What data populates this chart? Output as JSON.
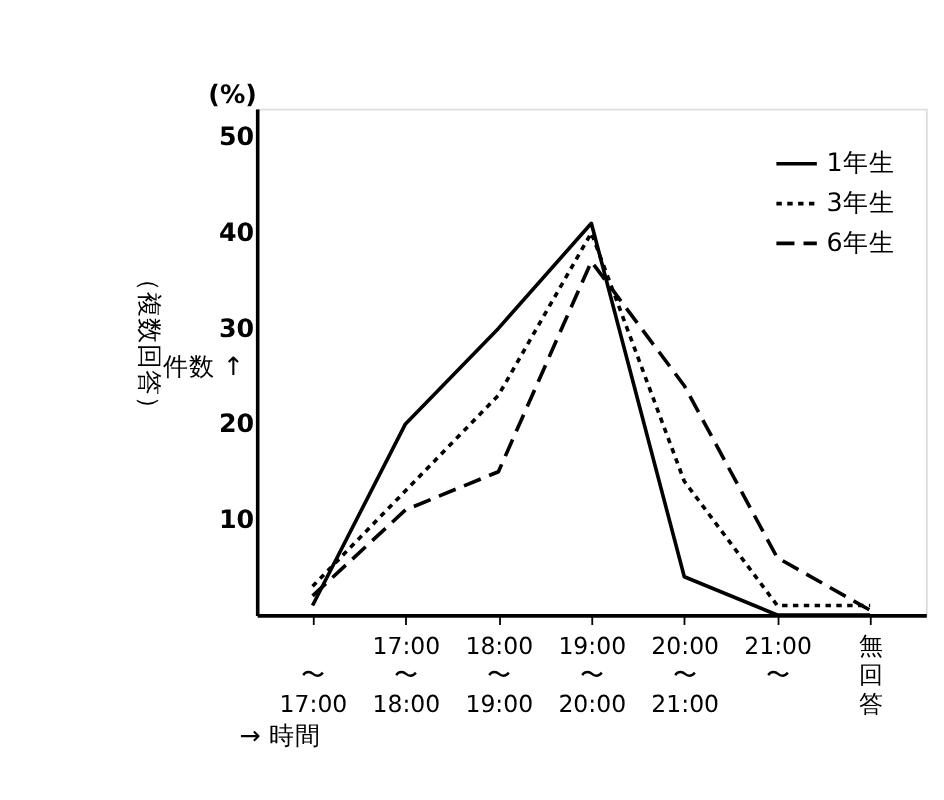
{
  "chart_data": {
    "type": "line",
    "xlabel": "→ 時間",
    "ylabel": "件数 ↑",
    "annotations": [
      "(%)",
      "（複数回答）"
    ],
    "categories": [
      "〜17:00",
      "17:00〜18:00",
      "18:00〜19:00",
      "19:00〜20:00",
      "20:00〜21:00",
      "21:00〜",
      "無回答"
    ],
    "series": [
      {
        "name": "1年生",
        "color": "#000000",
        "line_style": "solid",
        "values": [
          1,
          20,
          30,
          41,
          4,
          0,
          0
        ]
      },
      {
        "name": "3年生",
        "color": "#000000",
        "line_style": "dotted",
        "values": [
          3,
          13,
          23,
          40,
          14,
          1,
          1
        ]
      },
      {
        "name": "6年生",
        "color": "#000000",
        "line_style": "dashed",
        "values": [
          2,
          11,
          15,
          37,
          24,
          6,
          0.5
        ]
      }
    ],
    "ylim": [
      0,
      53
    ],
    "yticks": [
      10,
      20,
      30,
      40,
      50
    ],
    "grid": false,
    "legend": "top right",
    "marker": "none"
  }
}
